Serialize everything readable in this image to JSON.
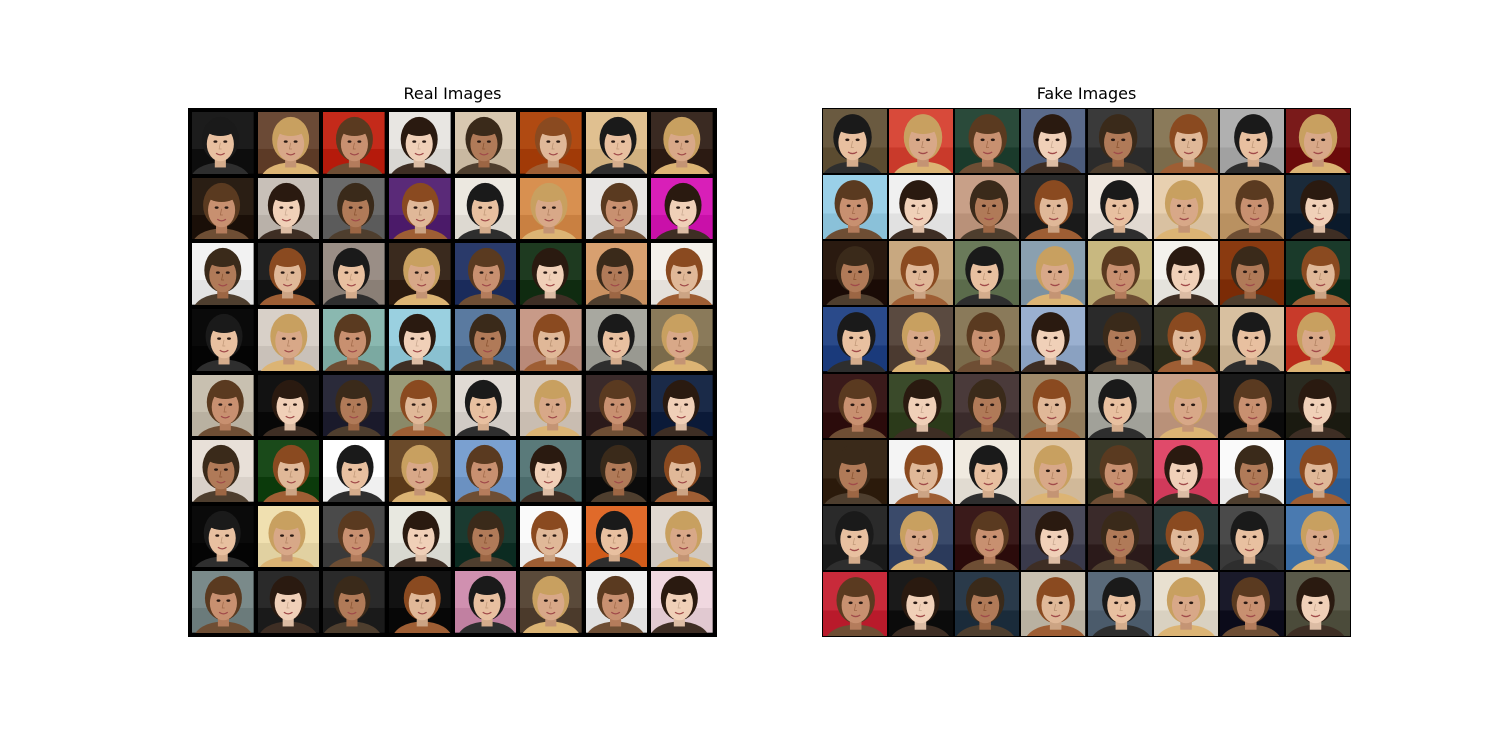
{
  "panels": [
    {
      "title": "Real Images",
      "rows": 8,
      "cols": 8,
      "cells": [
        [
          "#1c1c1c",
          "#6b4a36",
          "#c42a1a",
          "#e8e6e2",
          "#d8c8b0",
          "#b04a12",
          "#e0c090",
          "#3a2a22"
        ],
        [
          "#2a1e14",
          "#c8c0b8",
          "#6a6a6a",
          "#5a2a78",
          "#ece8e0",
          "#d89050",
          "#e8e6e4",
          "#d81fb8"
        ],
        [
          "#f2f2f2",
          "#222222",
          "#9a8e86",
          "#3a2a1e",
          "#2a3a6a",
          "#1e3a20",
          "#d8a070",
          "#f4f0ea"
        ],
        [
          "#0a0a0a",
          "#d8d0c8",
          "#8ab8b0",
          "#9ad0e0",
          "#5a7aa0",
          "#c89a88",
          "#a8a8a0",
          "#8a7a5a"
        ],
        [
          "#c8c0b0",
          "#121212",
          "#2a2a3a",
          "#9a9a78",
          "#e0dad4",
          "#d8ccc0",
          "#3a2a2a",
          "#1a2a48"
        ],
        [
          "#e8e0d8",
          "#1a4a1a",
          "#ffffff",
          "#6a4a2a",
          "#7aa0d0",
          "#5a7a7a",
          "#1a1a1a",
          "#2a2a2a"
        ],
        [
          "#0a0a0a",
          "#f0e0b0",
          "#4a4a4a",
          "#e8e8e0",
          "#1a3a30",
          "#fafafa",
          "#e06a2a",
          "#e0d8d0"
        ],
        [
          "#7a8a8a",
          "#2a2a2a",
          "#2a2a2a",
          "#121212",
          "#d090b0",
          "#5a4a3a",
          "#f0f0f0",
          "#f0d8e0"
        ]
      ]
    },
    {
      "title": "Fake Images",
      "rows": 8,
      "cols": 8,
      "cells": [
        [
          "#6a5a40",
          "#d84a3a",
          "#2a4a3a",
          "#5a6a8a",
          "#3a3a3a",
          "#8a7a5a",
          "#b0b0b0",
          "#7a1a1a"
        ],
        [
          "#9ad0e8",
          "#f0f0f0",
          "#c8a088",
          "#2a2a2a",
          "#f0e8e0",
          "#e8d0b0",
          "#c8a070",
          "#1a2a3a"
        ],
        [
          "#2a1a10",
          "#c8a880",
          "#6a7a5a",
          "#8aa0b0",
          "#c8b880",
          "#f4f2ec",
          "#8a3a10",
          "#1a3a2a"
        ],
        [
          "#2a4a8a",
          "#5a4a40",
          "#8a7a5a",
          "#9ab0d0",
          "#2a2a2a",
          "#3a3a2a",
          "#d8c0a0",
          "#c83a2a"
        ],
        [
          "#3a1a1a",
          "#3a4a2a",
          "#4a3a3a",
          "#a08a6a",
          "#b0b0a8",
          "#c8a088",
          "#1a1a1a",
          "#2a2a20"
        ],
        [
          "#3a2a1a",
          "#f4f4f4",
          "#f0eae0",
          "#e0c8a8",
          "#3a3a2a",
          "#e04a6a",
          "#fafafa",
          "#3a6aa0"
        ],
        [
          "#2a2a2a",
          "#3a4a6a",
          "#3a1a1a",
          "#4a4a5a",
          "#3a2a2a",
          "#2a3a3a",
          "#4a4a4a",
          "#4a7ab0"
        ],
        [
          "#c82a3a",
          "#1a1a1a",
          "#2a3a4a",
          "#c8c0b0",
          "#5a6a7a",
          "#e8e0d0",
          "#1a1a2a",
          "#5a5a4a"
        ]
      ]
    }
  ]
}
